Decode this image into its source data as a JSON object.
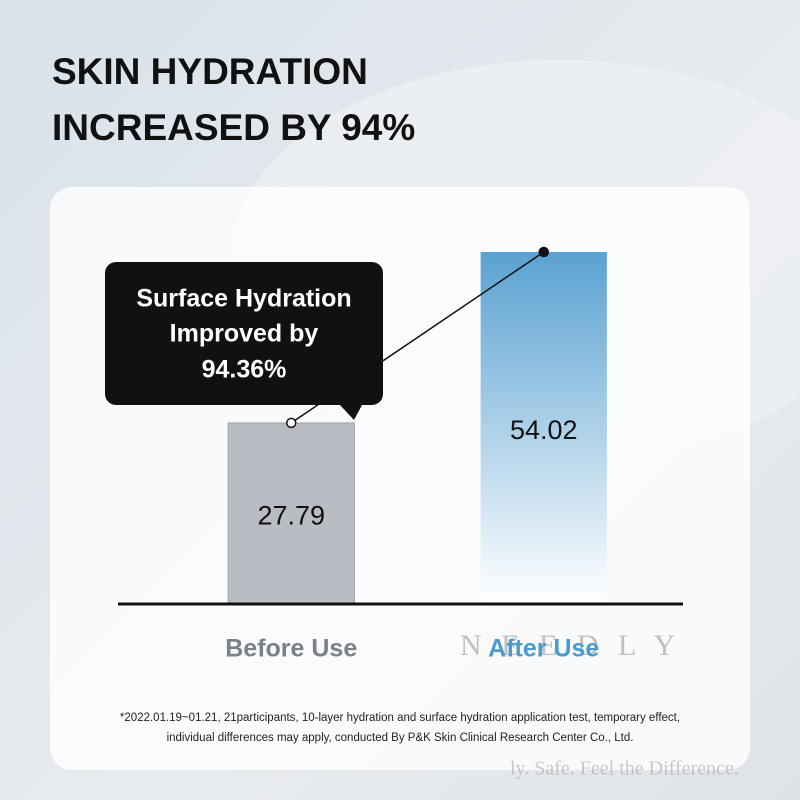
{
  "chart_data": {
    "type": "bar",
    "title": [
      "SKIN HYDRATION",
      "INCREASED BY 94%"
    ],
    "callout": [
      "Surface Hydration",
      "Improved by",
      "94.36%"
    ],
    "categories": [
      "Before Use",
      "After Use"
    ],
    "values": [
      27.79,
      54.02
    ],
    "colors": [
      "#b9bcc2",
      "#5aa2d2"
    ],
    "label_colors": [
      "#7b8089",
      "#4a9bd0"
    ],
    "footnote": [
      "*2022.01.19~01.21, 21participants, 10-layer hydration and surface hydration application test, temporary effect,",
      "individual differences may apply, conducted By P&K Skin Clinical Research Center Co., Ltd."
    ],
    "watermark": [
      "N E E D L Y",
      "ly. Safe. Feel the Difference."
    ]
  }
}
